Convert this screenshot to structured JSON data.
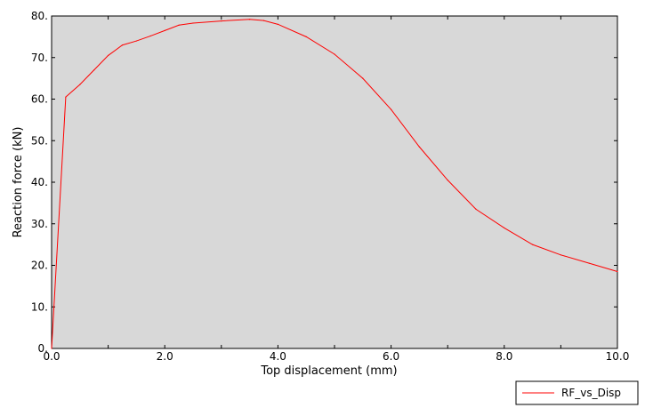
{
  "chart_data": {
    "type": "line",
    "title": "",
    "xlabel": "Top displacement (mm)",
    "ylabel": "Reaction force (kN)",
    "xlim": [
      0,
      10
    ],
    "ylim": [
      0,
      80
    ],
    "x_ticks": [
      0,
      1,
      2,
      3,
      4,
      5,
      6,
      7,
      8,
      9,
      10
    ],
    "x_tick_labels": [
      "0.0",
      "",
      "2.0",
      "",
      "4.0",
      "",
      "6.0",
      "",
      "8.0",
      "",
      "10.0"
    ],
    "y_ticks": [
      0,
      10,
      20,
      30,
      40,
      50,
      60,
      70,
      80
    ],
    "y_tick_labels": [
      "0.",
      "10.",
      "20.",
      "30.",
      "40.",
      "50.",
      "60.",
      "70.",
      "80."
    ],
    "grid": false,
    "legend_position": "bottom-right",
    "plot_background": "#d8d8d8",
    "series": [
      {
        "name": "RF_vs_Disp",
        "color": "#ff0000",
        "x": [
          0.0,
          0.25,
          0.5,
          0.75,
          1.0,
          1.25,
          1.5,
          1.75,
          2.0,
          2.25,
          2.5,
          3.0,
          3.5,
          3.75,
          4.0,
          4.5,
          5.0,
          5.5,
          6.0,
          6.5,
          7.0,
          7.5,
          8.0,
          8.5,
          9.0,
          9.5,
          10.0
        ],
        "values": [
          0.0,
          60.5,
          63.5,
          67.0,
          70.5,
          73.0,
          74.0,
          75.2,
          76.5,
          77.8,
          78.3,
          78.8,
          79.2,
          78.9,
          78.0,
          75.0,
          70.8,
          65.0,
          57.5,
          48.5,
          40.5,
          33.5,
          29.0,
          25.0,
          22.5,
          20.5,
          18.5
        ]
      }
    ]
  }
}
